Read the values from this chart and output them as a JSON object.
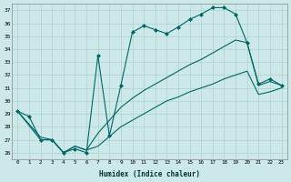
{
  "xlabel": "Humidex (Indice chaleur)",
  "bg_color": "#cce8e8",
  "grid_color": "#b0d0d0",
  "line_color": "#006666",
  "xlim": [
    -0.5,
    23.5
  ],
  "ylim": [
    25.5,
    37.5
  ],
  "yticks": [
    26,
    27,
    28,
    29,
    30,
    31,
    32,
    33,
    34,
    35,
    36,
    37
  ],
  "xticks": [
    0,
    1,
    2,
    3,
    4,
    5,
    6,
    7,
    8,
    9,
    10,
    11,
    12,
    13,
    14,
    15,
    16,
    17,
    18,
    19,
    20,
    21,
    22,
    23
  ],
  "s1_x": [
    0,
    1,
    2,
    3,
    4,
    5,
    6,
    7,
    8,
    9,
    10,
    11,
    12,
    13,
    14,
    15,
    16,
    17,
    18,
    19,
    20,
    21,
    22,
    23
  ],
  "s1_y": [
    29.2,
    28.8,
    27.0,
    27.0,
    26.0,
    26.3,
    26.0,
    33.5,
    27.3,
    31.2,
    35.3,
    35.8,
    35.5,
    35.2,
    35.7,
    36.3,
    36.7,
    37.2,
    37.2,
    36.7,
    34.5,
    31.3,
    31.7,
    31.2
  ],
  "s2_x": [
    0,
    2,
    3,
    4,
    5,
    6,
    7,
    9,
    10,
    11,
    12,
    13,
    14,
    15,
    16,
    17,
    18,
    19,
    20,
    21,
    22,
    23
  ],
  "s2_y": [
    29.2,
    27.0,
    27.0,
    26.0,
    26.5,
    26.2,
    27.5,
    29.5,
    30.2,
    30.8,
    31.3,
    31.8,
    32.3,
    32.8,
    33.2,
    33.7,
    34.2,
    34.7,
    34.5,
    31.2,
    31.5,
    31.2
  ],
  "s3_x": [
    0,
    2,
    3,
    4,
    5,
    6,
    7,
    9,
    10,
    11,
    12,
    13,
    14,
    15,
    16,
    17,
    18,
    19,
    20,
    21,
    22,
    23
  ],
  "s3_y": [
    29.2,
    27.2,
    27.0,
    26.0,
    26.5,
    26.2,
    26.5,
    28.0,
    28.5,
    29.0,
    29.5,
    30.0,
    30.3,
    30.7,
    31.0,
    31.3,
    31.7,
    32.0,
    32.3,
    30.5,
    30.7,
    31.0
  ]
}
